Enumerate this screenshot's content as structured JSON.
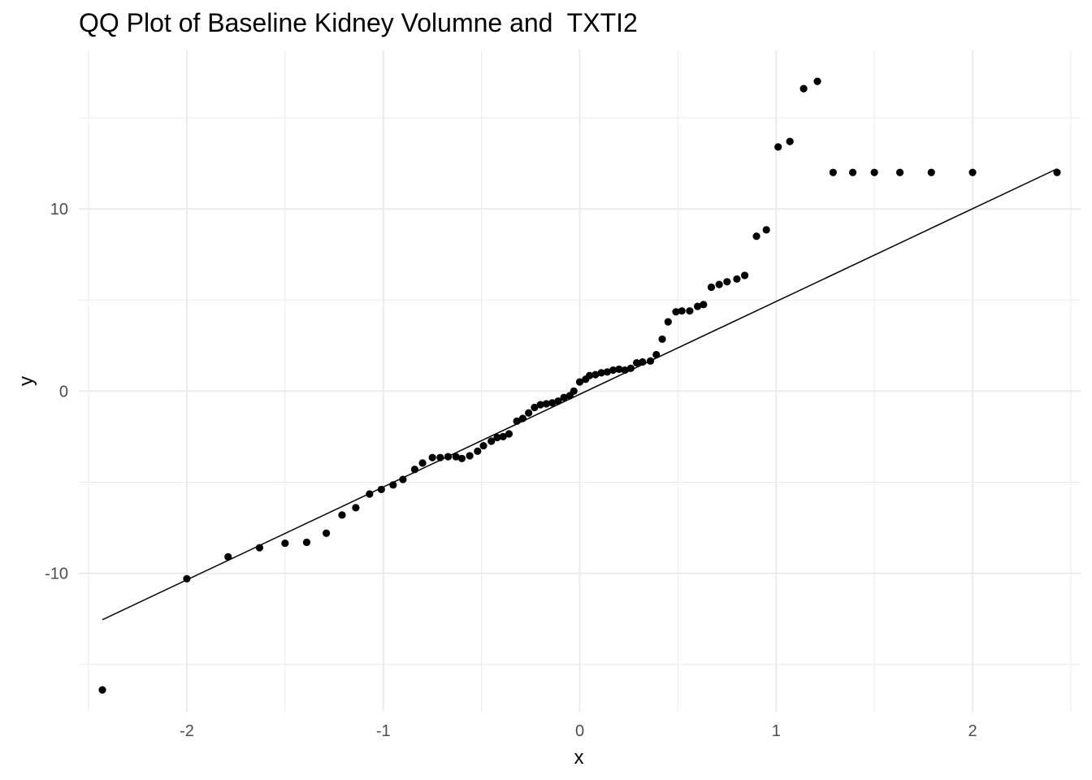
{
  "chart_data": {
    "type": "scatter",
    "title": "QQ Plot of Baseline Kidney Volumne and  TXTI2",
    "xlabel": "x",
    "ylabel": "y",
    "xlim": [
      -2.55,
      2.55
    ],
    "ylim": [
      -17.6,
      18.7
    ],
    "x_ticks": [
      -2,
      -1,
      0,
      1,
      2
    ],
    "x_tick_labels": [
      "-2",
      "-1",
      "0",
      "1",
      "2"
    ],
    "y_ticks": [
      -10,
      0,
      10
    ],
    "y_tick_labels": [
      "-10",
      "0",
      "10"
    ],
    "x_minor_ticks": [
      -2.5,
      -1.5,
      -0.5,
      0.5,
      1.5,
      2.5
    ],
    "y_minor_ticks": [
      -15,
      -5,
      5,
      15
    ],
    "grid": true,
    "background": "#ffffff",
    "grid_color": "#ebebeb",
    "point_color": "#000000",
    "line_color": "#000000",
    "reference_line": {
      "x": [
        -2.43,
        2.43
      ],
      "y": [
        -12.55,
        12.2
      ]
    },
    "series": [
      {
        "type": "points",
        "x": [
          -2.43,
          -2.0,
          -1.79,
          -1.63,
          -1.5,
          -1.39,
          -1.29,
          -1.21,
          -1.14,
          -1.07,
          -1.01,
          -0.95,
          -0.9,
          -0.84,
          -0.8,
          -0.75,
          -0.71,
          -0.67,
          -0.63,
          -0.6,
          -0.56,
          -0.52,
          -0.49,
          -0.45,
          -0.42,
          -0.39,
          -0.36,
          -0.32,
          -0.29,
          -0.26,
          -0.23,
          -0.2,
          -0.17,
          -0.14,
          -0.11,
          -0.08,
          -0.05,
          -0.03,
          0.0,
          0.03,
          0.05,
          0.08,
          0.11,
          0.14,
          0.17,
          0.2,
          0.23,
          0.26,
          0.29,
          0.32,
          0.36,
          0.39,
          0.42,
          0.45,
          0.49,
          0.52,
          0.56,
          0.6,
          0.63,
          0.67,
          0.71,
          0.75,
          0.8,
          0.84,
          0.9,
          0.95,
          1.01,
          1.07,
          1.14,
          1.21,
          1.29,
          1.39,
          1.5,
          1.63,
          1.79,
          2.0,
          2.43
        ],
        "y": [
          -16.4,
          -10.3,
          -9.1,
          -8.6,
          -8.35,
          -8.3,
          -7.8,
          -6.8,
          -6.4,
          -5.65,
          -5.4,
          -5.15,
          -4.85,
          -4.3,
          -3.95,
          -3.65,
          -3.65,
          -3.6,
          -3.6,
          -3.7,
          -3.55,
          -3.3,
          -3.0,
          -2.75,
          -2.55,
          -2.5,
          -2.35,
          -1.65,
          -1.5,
          -1.2,
          -0.9,
          -0.75,
          -0.7,
          -0.65,
          -0.55,
          -0.35,
          -0.25,
          0.0,
          0.5,
          0.65,
          0.85,
          0.9,
          1.0,
          1.05,
          1.15,
          1.2,
          1.15,
          1.25,
          1.55,
          1.6,
          1.65,
          2.0,
          2.85,
          3.8,
          4.35,
          4.4,
          4.4,
          4.65,
          4.75,
          5.7,
          5.85,
          6.0,
          6.15,
          6.35,
          8.5,
          8.85,
          13.4,
          13.7,
          16.6,
          17.0,
          12.0,
          12.0,
          12.0,
          12.0,
          12.0,
          12.0,
          12.0
        ]
      }
    ]
  }
}
